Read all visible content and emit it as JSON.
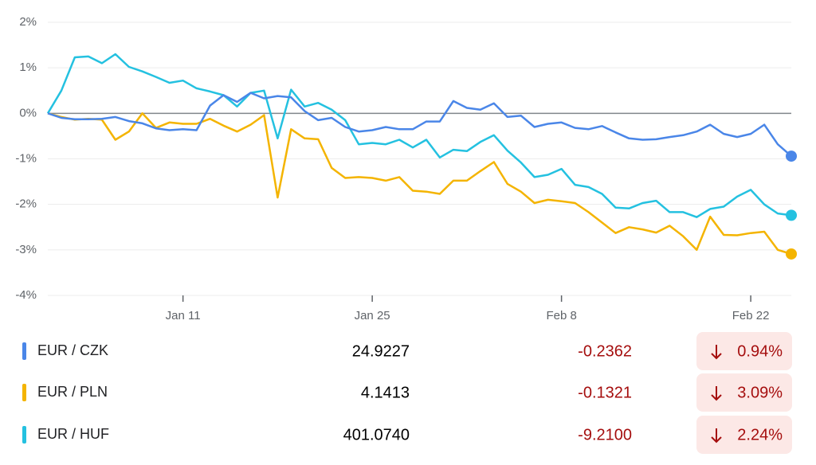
{
  "chart_data": {
    "type": "line",
    "categories": [
      null,
      null,
      null,
      null,
      null,
      null,
      null,
      null,
      null,
      null,
      "Jan 11",
      null,
      null,
      null,
      null,
      null,
      null,
      null,
      null,
      null,
      null,
      null,
      null,
      null,
      "Jan 25",
      null,
      null,
      null,
      null,
      null,
      null,
      null,
      null,
      null,
      null,
      null,
      null,
      null,
      "Feb 8",
      null,
      null,
      null,
      null,
      null,
      null,
      null,
      null,
      null,
      null,
      null,
      null,
      null,
      "Feb 22",
      null,
      null,
      null
    ],
    "series": [
      {
        "name": "EUR / CZK",
        "color": "#4a86e8",
        "values": [
          0,
          -0.1,
          -0.13,
          -0.13,
          -0.12,
          -0.08,
          -0.17,
          -0.22,
          -0.33,
          -0.37,
          -0.35,
          -0.37,
          0.17,
          0.4,
          0.25,
          0.45,
          0.33,
          0.38,
          0.35,
          0.05,
          -0.15,
          -0.1,
          -0.3,
          -0.4,
          -0.37,
          -0.3,
          -0.35,
          -0.35,
          -0.18,
          -0.18,
          0.27,
          0.12,
          0.08,
          0.22,
          -0.08,
          -0.05,
          -0.3,
          -0.23,
          -0.2,
          -0.32,
          -0.35,
          -0.28,
          -0.42,
          -0.55,
          -0.58,
          -0.57,
          -0.52,
          -0.48,
          -0.4,
          -0.25,
          -0.45,
          -0.52,
          -0.45,
          -0.25,
          -0.68,
          -0.94
        ]
      },
      {
        "name": "EUR / PLN",
        "color": "#f4b400",
        "values": [
          0,
          -0.08,
          -0.14,
          -0.12,
          -0.14,
          -0.58,
          -0.4,
          0,
          -0.32,
          -0.2,
          -0.23,
          -0.23,
          -0.12,
          -0.27,
          -0.4,
          -0.25,
          -0.04,
          -1.85,
          -0.35,
          -0.55,
          -0.57,
          -1.2,
          -1.42,
          -1.4,
          -1.42,
          -1.48,
          -1.4,
          -1.7,
          -1.72,
          -1.77,
          -1.48,
          -1.48,
          -1.27,
          -1.07,
          -1.55,
          -1.72,
          -1.97,
          -1.9,
          -1.93,
          -1.97,
          -2.17,
          -2.4,
          -2.63,
          -2.5,
          -2.55,
          -2.62,
          -2.47,
          -2.7,
          -3,
          -2.27,
          -2.67,
          -2.68,
          -2.63,
          -2.6,
          -3,
          -3.09
        ]
      },
      {
        "name": "EUR / HUF",
        "color": "#24c1e0",
        "values": [
          0,
          0.5,
          1.23,
          1.25,
          1.1,
          1.3,
          1.02,
          0.92,
          0.8,
          0.67,
          0.72,
          0.55,
          0.48,
          0.4,
          0.15,
          0.45,
          0.5,
          -0.55,
          0.52,
          0.15,
          0.23,
          0.08,
          -0.15,
          -0.68,
          -0.65,
          -0.68,
          -0.58,
          -0.75,
          -0.58,
          -0.97,
          -0.8,
          -0.83,
          -0.63,
          -0.48,
          -0.82,
          -1.08,
          -1.4,
          -1.35,
          -1.22,
          -1.57,
          -1.62,
          -1.77,
          -2.07,
          -2.09,
          -1.97,
          -1.92,
          -2.17,
          -2.17,
          -2.28,
          -2.1,
          -2.05,
          -1.83,
          -1.68,
          -2,
          -2.2,
          -2.24
        ]
      }
    ],
    "ylim": [
      -4,
      2
    ],
    "yticks": [
      {
        "value": 2,
        "label": "2%"
      },
      {
        "value": 1,
        "label": "1%"
      },
      {
        "value": 0,
        "label": "0%"
      },
      {
        "value": -1,
        "label": "-1%"
      },
      {
        "value": -2,
        "label": "-2%"
      },
      {
        "value": -3,
        "label": "-3%"
      },
      {
        "value": -4,
        "label": "-4%"
      }
    ],
    "grid": true
  },
  "table": {
    "rows": [
      [
        "24.9227",
        "-0.2362",
        "0.94%"
      ],
      [
        "4.1413",
        "-0.1321",
        "3.09%"
      ],
      [
        "401.0740",
        "-9.2100",
        "2.24%"
      ]
    ]
  }
}
